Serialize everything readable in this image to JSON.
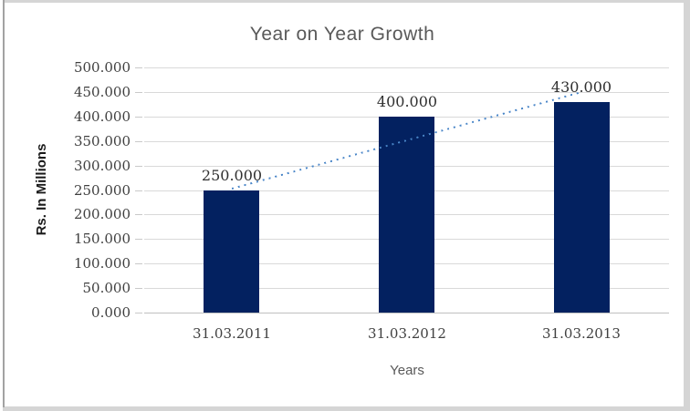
{
  "chart_data": {
    "type": "bar",
    "title": "Year on Year Growth",
    "xlabel": "Years",
    "ylabel": "Rs. In Millions",
    "categories": [
      "31.03.2011",
      "31.03.2012",
      "31.03.2013"
    ],
    "values": [
      250,
      400,
      430
    ],
    "data_labels": [
      "250.000",
      "400.000",
      "430.000"
    ],
    "ylim": [
      0,
      500
    ],
    "ytick_step": 50,
    "ytick_labels": [
      "0.000",
      "50.000",
      "100.000",
      "150.000",
      "200.000",
      "250.000",
      "300.000",
      "350.000",
      "400.000",
      "450.000",
      "500.000"
    ],
    "grid": true,
    "legend": "none",
    "bar_color": "#032160",
    "trendline": {
      "style": "dotted",
      "color": "#4a86c8",
      "start_value": 252,
      "end_value": 449
    }
  }
}
